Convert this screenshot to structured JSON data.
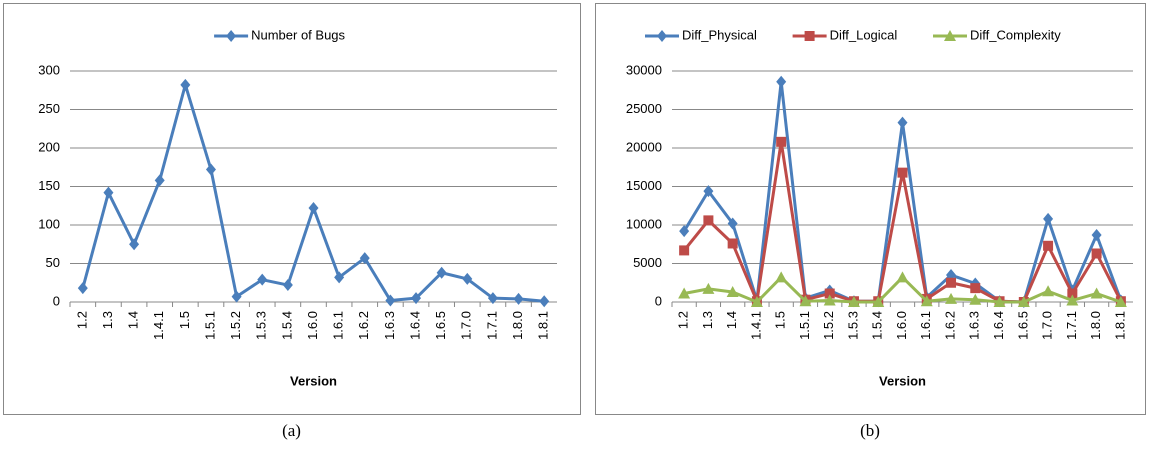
{
  "chart_data": [
    {
      "type": "line",
      "caption": "(a)",
      "x_label": "Version",
      "categories": [
        "1.2",
        "1.3",
        "1.4",
        "1.4.1",
        "1.5",
        "1.5.1",
        "1.5.2",
        "1.5.3",
        "1.5.4",
        "1.6.0",
        "1.6.1",
        "1.6.2",
        "1.6.3",
        "1.6.4",
        "1.6.5",
        "1.7.0",
        "1.7.1",
        "1.8.0",
        "1.8.1"
      ],
      "series": [
        {
          "name": "Number of Bugs",
          "color": "#4a7ebb",
          "marker": "diamond",
          "values": [
            18,
            142,
            75,
            158,
            282,
            172,
            7,
            29,
            22,
            122,
            32,
            57,
            2,
            5,
            38,
            30,
            5,
            4,
            1
          ]
        }
      ],
      "ylim": [
        0,
        300
      ],
      "yticks": [
        0,
        50,
        100,
        150,
        200,
        250,
        300
      ],
      "grid": true,
      "legend": "top"
    },
    {
      "type": "line",
      "caption": "(b)",
      "x_label": "Version",
      "categories": [
        "1.2",
        "1.3",
        "1.4",
        "1.4.1",
        "1.5",
        "1.5.1",
        "1.5.2",
        "1.5.3",
        "1.5.4",
        "1.6.0",
        "1.6.1",
        "1.6.2",
        "1.6.3",
        "1.6.4",
        "1.6.5",
        "1.7.0",
        "1.7.1",
        "1.8.0",
        "1.8.1"
      ],
      "series": [
        {
          "name": "Diff_Physical",
          "color": "#4a7ebb",
          "marker": "diamond",
          "values": [
            9200,
            14400,
            10200,
            200,
            28600,
            500,
            1500,
            100,
            100,
            23300,
            600,
            3500,
            2400,
            100,
            0,
            10800,
            1500,
            8700,
            200
          ]
        },
        {
          "name": "Diff_Logical",
          "color": "#be4b48",
          "marker": "square",
          "values": [
            6700,
            10600,
            7600,
            100,
            20800,
            300,
            1100,
            100,
            100,
            16800,
            400,
            2500,
            1800,
            100,
            0,
            7300,
            1100,
            6300,
            100
          ]
        },
        {
          "name": "Diff_Complexity",
          "color": "#98b954",
          "marker": "triangle",
          "values": [
            1100,
            1700,
            1300,
            0,
            3200,
            100,
            200,
            0,
            0,
            3200,
            100,
            400,
            300,
            0,
            0,
            1400,
            200,
            1100,
            0
          ]
        }
      ],
      "ylim": [
        0,
        30000
      ],
      "yticks": [
        0,
        5000,
        10000,
        15000,
        20000,
        25000,
        30000
      ],
      "grid": true,
      "legend": "top"
    }
  ]
}
